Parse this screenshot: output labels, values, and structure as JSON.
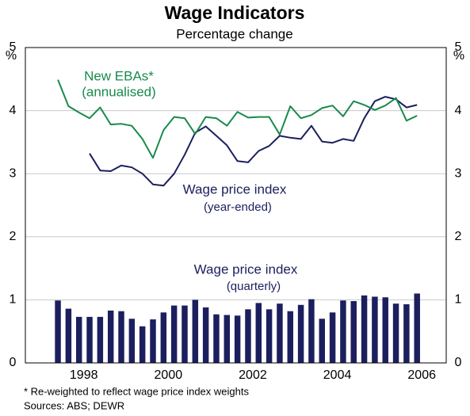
{
  "chart_data": {
    "type": "bar",
    "title": "Wage Indicators",
    "subtitle": "Percentage change",
    "y_unit_left": "%",
    "y_unit_right": "%",
    "annotations": [
      "New EBAs*",
      "(annualised)",
      "Wage price index",
      "(year-ended)",
      "Wage price index",
      "(quarterly)"
    ],
    "footnote": "*   Re-weighted to reflect wage price index weights",
    "source": "Sources: ABS; DEWR",
    "x": [
      1997.5,
      1997.75,
      1998,
      1998.25,
      1998.5,
      1998.75,
      1999,
      1999.25,
      1999.5,
      1999.75,
      2000,
      2000.25,
      2000.5,
      2000.75,
      2001,
      2001.25,
      2001.5,
      2001.75,
      2002,
      2002.25,
      2002.5,
      2002.75,
      2003,
      2003.25,
      2003.5,
      2003.75,
      2004,
      2004.25,
      2004.5,
      2004.75,
      2005,
      2005.25,
      2005.5,
      2005.75,
      2006
    ],
    "xlim": [
      1996.73,
      2006.69
    ],
    "xticks": [
      1998,
      2000,
      2002,
      2004,
      2006
    ],
    "ylim": [
      0,
      5
    ],
    "yticks": [
      0,
      1,
      2,
      3,
      4,
      5
    ],
    "grid": true,
    "series": [
      {
        "name": "Wage price index (quarterly)",
        "type": "bar",
        "color": "#1c1f5e",
        "values": [
          0.99,
          0.86,
          0.73,
          0.73,
          0.73,
          0.83,
          0.82,
          0.7,
          0.58,
          0.69,
          0.8,
          0.91,
          0.91,
          1.0,
          0.88,
          0.77,
          0.76,
          0.75,
          0.85,
          0.95,
          0.85,
          0.94,
          0.82,
          0.92,
          1.01,
          0.7,
          0.8,
          0.99,
          0.98,
          1.07,
          1.05,
          1.04,
          0.94,
          0.93,
          1.1
        ]
      },
      {
        "name": "Wage price index (year-ended)",
        "type": "line",
        "color": "#1c1f5e",
        "values": [
          null,
          null,
          null,
          3.32,
          3.05,
          3.04,
          3.13,
          3.1,
          3.0,
          2.83,
          2.81,
          3.0,
          3.3,
          3.65,
          3.75,
          3.6,
          3.45,
          3.2,
          3.18,
          3.36,
          3.44,
          3.6,
          3.57,
          3.55,
          3.76,
          3.51,
          3.49,
          3.55,
          3.52,
          3.88,
          4.15,
          4.22,
          4.18,
          4.05,
          4.09
        ]
      },
      {
        "name": "New EBAs (annualised)",
        "type": "line",
        "color": "#198a4c",
        "values": [
          4.49,
          4.07,
          3.97,
          3.88,
          4.05,
          3.78,
          3.79,
          3.76,
          3.55,
          3.25,
          3.69,
          3.9,
          3.88,
          3.63,
          3.9,
          3.88,
          3.76,
          3.98,
          3.89,
          3.9,
          3.9,
          3.62,
          4.07,
          3.88,
          3.93,
          4.04,
          4.08,
          3.91,
          4.15,
          4.09,
          4.01,
          4.08,
          4.2,
          3.84,
          3.92
        ]
      }
    ]
  }
}
